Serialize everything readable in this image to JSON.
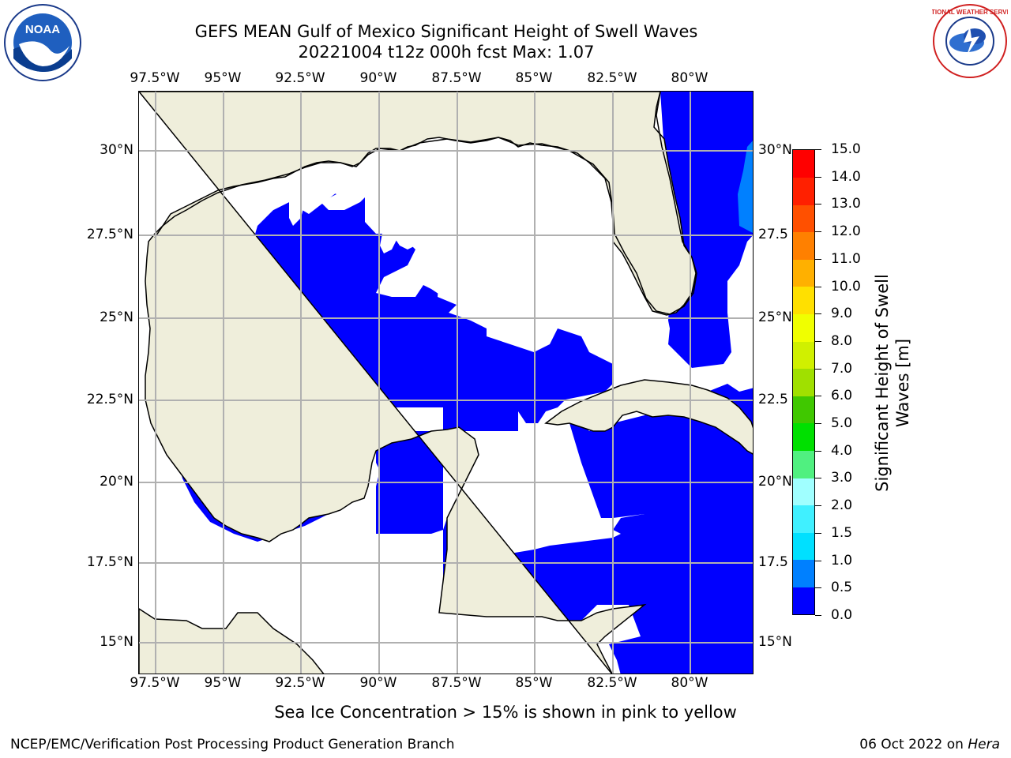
{
  "header": {
    "title_line1": "GEFS MEAN Gulf of Mexico Significant Height of Swell Waves",
    "title_line2": "20221004 t12z 000h fcst   Max: 1.07"
  },
  "map": {
    "region": "Gulf of Mexico",
    "lon_labels": [
      "97.5°W",
      "95°W",
      "92.5°W",
      "90°W",
      "87.5°W",
      "85°W",
      "82.5°W",
      "80°W"
    ],
    "lat_labels": [
      "30°N",
      "27.5°N",
      "25°N",
      "22.5°N",
      "20°N",
      "17.5°N",
      "15°N"
    ],
    "right_lat_labels": [
      "30°N",
      "27.5",
      "25°N",
      "22.5",
      "20°N",
      "17.5",
      "15°N"
    ],
    "colors": {
      "land": "#efeedb",
      "ocean_low": "#0000ff",
      "ocean_mid": "#0080ff",
      "ocean_high": "#00c8ff",
      "no_data": "#ffffff",
      "grid": "#b0b0b0",
      "coast": "#000000"
    }
  },
  "colorbar": {
    "title_line1": "Significant Height of Swell",
    "title_line2": "Waves [m]",
    "tick_labels": [
      "0.0",
      "0.5",
      "1.0",
      "1.5",
      "2.0",
      "3.0",
      "4.0",
      "5.0",
      "6.0",
      "7.0",
      "8.0",
      "9.0",
      "10.0",
      "11.0",
      "12.0",
      "13.0",
      "14.0",
      "15.0"
    ],
    "level_colors": [
      "#0000ff",
      "#0080ff",
      "#00e0ff",
      "#40f0ff",
      "#a0ffff",
      "#50f080",
      "#00e000",
      "#40c800",
      "#a0e000",
      "#d0f000",
      "#f0ff00",
      "#ffe000",
      "#ffb000",
      "#ff8000",
      "#ff5000",
      "#ff2000",
      "#ff0000"
    ]
  },
  "footnote": "Sea Ice Concentration > 15% is shown in pink to yellow",
  "credits": {
    "left": "NCEP/EMC/Verification Post Processing Product Generation Branch",
    "right_date": "06 Oct 2022 on",
    "right_host": "Hera"
  },
  "logos": {
    "noaa_text": "NOAA",
    "nws_text": "NATIONAL WEATHER SERVICE"
  }
}
